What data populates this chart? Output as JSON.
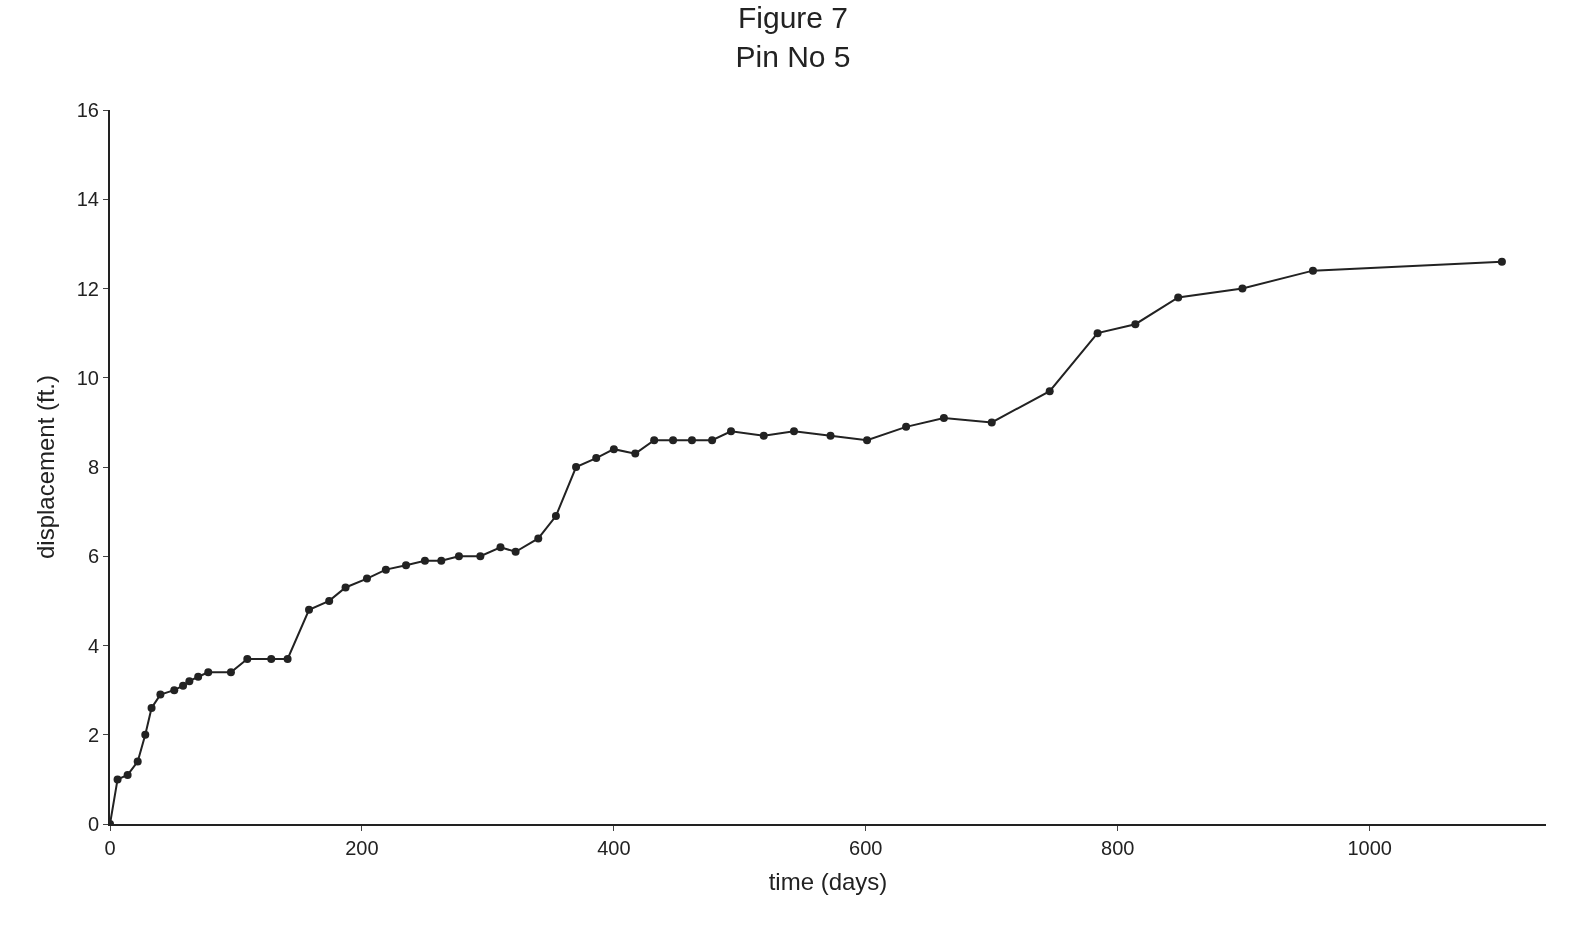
{
  "chart_data": {
    "type": "line",
    "title": "Figure 7",
    "subtitle": "Pin No 5",
    "xlabel": "time (days)",
    "ylabel": "displacement (ft.)",
    "x": [
      0,
      6,
      14,
      22,
      28,
      33,
      40,
      51,
      58,
      63,
      70,
      78,
      96,
      109,
      128,
      141,
      158,
      174,
      187,
      204,
      219,
      235,
      250,
      263,
      277,
      294,
      310,
      322,
      340,
      354,
      370,
      386,
      400,
      417,
      432,
      447,
      462,
      478,
      493,
      519,
      543,
      572,
      601,
      632,
      662,
      700,
      746,
      784,
      814,
      848,
      899,
      955,
      1105
    ],
    "series": [
      {
        "color": "#222222",
        "values": [
          0,
          1.0,
          1.1,
          1.4,
          2.0,
          2.6,
          2.9,
          3.0,
          3.1,
          3.2,
          3.3,
          3.4,
          3.4,
          3.7,
          3.7,
          3.7,
          4.8,
          5.0,
          5.3,
          5.5,
          5.7,
          5.8,
          5.9,
          5.9,
          6.0,
          6.0,
          6.2,
          6.1,
          6.4,
          6.9,
          8.0,
          8.2,
          8.4,
          8.3,
          8.6,
          8.6,
          8.6,
          8.6,
          8.8,
          8.7,
          8.8,
          8.7,
          8.6,
          8.9,
          9.1,
          9.0,
          9.7,
          11.0,
          11.2,
          11.8,
          12.0,
          12.4,
          12.6
        ]
      }
    ],
    "xlim": [
      0,
      1140
    ],
    "ylim": [
      0,
      16
    ],
    "xticks": [
      0,
      200,
      400,
      600,
      800,
      1000
    ],
    "yticks": [
      0,
      2,
      4,
      6,
      8,
      10,
      12,
      14,
      16
    ],
    "marker": "circle",
    "line_style": "solid"
  }
}
